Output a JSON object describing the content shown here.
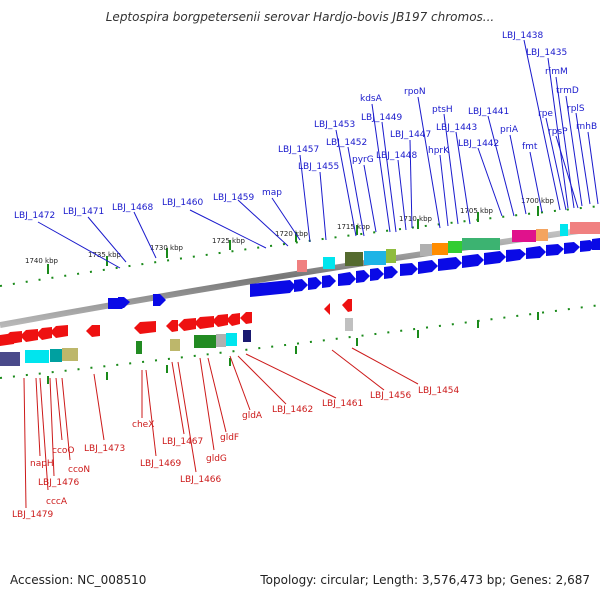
{
  "title": "Leptospira borgpetersenii serovar Hardjo-bovis JB197 chromos...",
  "footer": {
    "accession": "Accession: NC_008510",
    "summary": "Topology: circular; Length: 3,576,473 bp; Genes: 2,687"
  },
  "colors": {
    "forward_label": "#1a1acc",
    "reverse_label": "#cc1a1a",
    "forward_gene": "#0a0ae6",
    "reverse_gene": "#ee1111",
    "tick": "#1a8a1a",
    "backbone": "#8a8a8a"
  },
  "kbp_ticks": [
    "1740 kbp",
    "1735 kbp",
    "1730 kbp",
    "1725 kbp",
    "1720 kbp",
    "1715 kbp",
    "1710 kbp",
    "1705 kbp",
    "1700 kbp"
  ],
  "forward_labels": [
    "LBJ_1472",
    "LBJ_1471",
    "LBJ_1468",
    "LBJ_1460",
    "LBJ_1459",
    "map",
    "LBJ_1457",
    "LBJ_1455",
    "LBJ_1453",
    "LBJ_1452",
    "kdsA",
    "LBJ_1449",
    "pyrG",
    "LBJ_1448",
    "LBJ_1447",
    "rpoN",
    "ptsH",
    "LBJ_1443",
    "hprK",
    "LBJ_1442",
    "LBJ_1441",
    "priA",
    "fmt",
    "LBJ_1438",
    "LBJ_1435",
    "rimM",
    "rpe",
    "trmD",
    "rpsP",
    "rplS",
    "rnhB"
  ],
  "reverse_labels": [
    "LBJ_1479",
    "cccA",
    "LBJ_1476",
    "napH",
    "ccoO",
    "ccoN",
    "LBJ_1473",
    "cheX",
    "LBJ_1469",
    "LBJ_1467",
    "LBJ_1466",
    "gldG",
    "gldF",
    "gldA",
    "LBJ_1462",
    "LBJ_1461",
    "LBJ_1456",
    "LBJ_1454"
  ]
}
